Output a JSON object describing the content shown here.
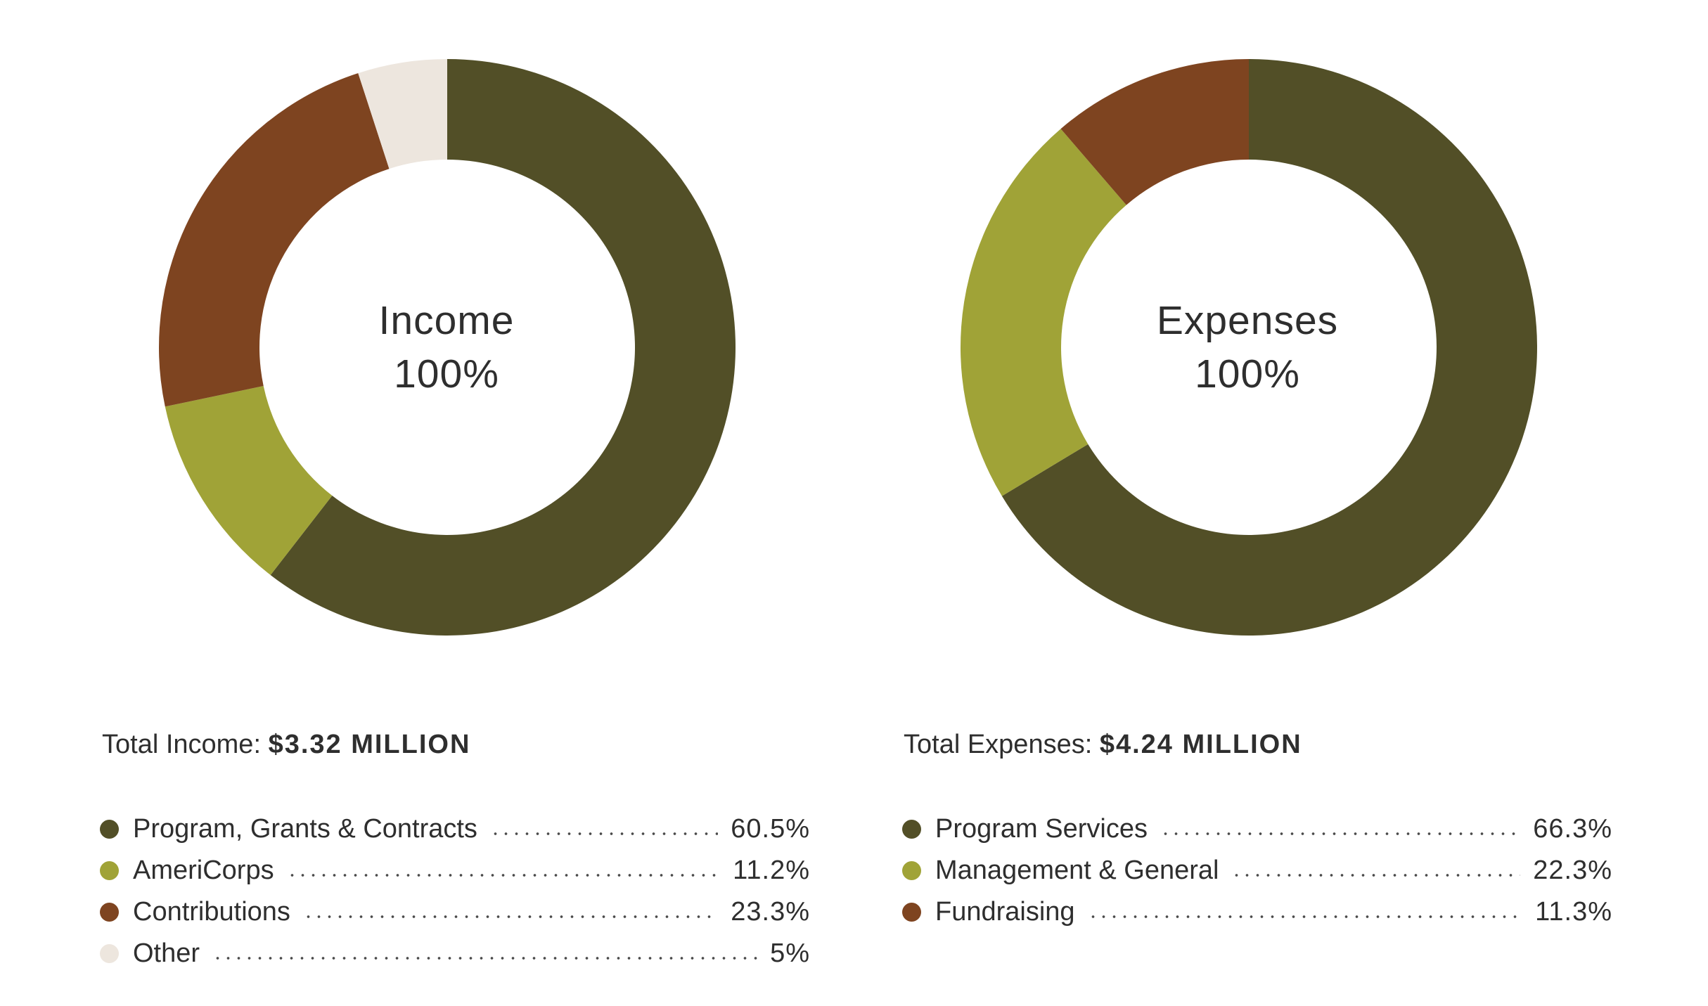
{
  "chart_data": [
    {
      "type": "pie",
      "variant": "donut",
      "center_title": "Income",
      "center_value": "100%",
      "total_label": "Total Income:",
      "total_value": "$3.32 MILLION",
      "slices": [
        {
          "label": "Program, Grants & Contracts",
          "value": 60.5,
          "display": "60.5%",
          "color": "#524f27"
        },
        {
          "label": "AmeriCorps",
          "value": 11.2,
          "display": "11.2%",
          "color": "#a0a337"
        },
        {
          "label": "Contributions",
          "value": 23.3,
          "display": "23.3%",
          "color": "#7e4420"
        },
        {
          "label": "Other",
          "value": 5,
          "display": "5%",
          "color": "#ede6de"
        }
      ]
    },
    {
      "type": "pie",
      "variant": "donut",
      "center_title": "Expenses",
      "center_value": "100%",
      "total_label": "Total Expenses:",
      "total_value": "$4.24 MILLION",
      "slices": [
        {
          "label": "Program Services",
          "value": 66.3,
          "display": "66.3%",
          "color": "#524f27"
        },
        {
          "label": "Management & General",
          "value": 22.3,
          "display": "22.3%",
          "color": "#a0a337"
        },
        {
          "label": "Fundraising",
          "value": 11.3,
          "display": "11.3%",
          "color": "#7e4420"
        }
      ]
    }
  ]
}
